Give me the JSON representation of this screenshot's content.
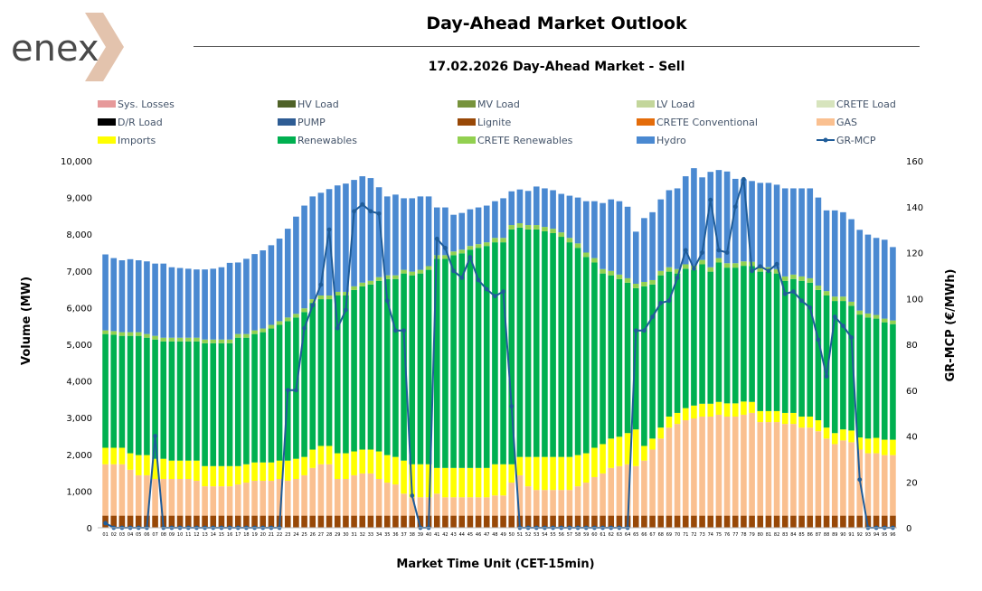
{
  "header": {
    "logo_text": "enex",
    "title": "Day-Ahead Market Outlook",
    "subtitle": "17.02.2026  Day-Ahead Market - Sell"
  },
  "chart_data": {
    "type": "bar",
    "stacked": true,
    "x_count": 96,
    "xlabel": "Market Time Unit (CET-15min)",
    "ylabel": "Volume (MW)",
    "y2label": "GR-MCP (€/MWh)",
    "ylim": [
      0,
      10000
    ],
    "y2lim": [
      0,
      160
    ],
    "y_ticks": [
      "0",
      "1,000",
      "2,000",
      "3,000",
      "4,000",
      "5,000",
      "6,000",
      "7,000",
      "8,000",
      "9,000",
      "10,000"
    ],
    "y2_ticks": [
      "0",
      "20",
      "40",
      "60",
      "80",
      "100",
      "120",
      "140",
      "160"
    ],
    "legend": [
      {
        "name": "Sys. Losses",
        "color": "#e6999a",
        "kind": "box"
      },
      {
        "name": "HV Load",
        "color": "#4f6228",
        "kind": "box"
      },
      {
        "name": "MV Load",
        "color": "#77933c",
        "kind": "box"
      },
      {
        "name": "LV Load",
        "color": "#c3d69b",
        "kind": "box"
      },
      {
        "name": "CRETE Load",
        "color": "#d7e4bd",
        "kind": "box"
      },
      {
        "name": "D/R Load",
        "color": "#000000",
        "kind": "box"
      },
      {
        "name": "PUMP",
        "color": "#2e5c94",
        "kind": "box"
      },
      {
        "name": "Lignite",
        "color": "#984807",
        "kind": "box"
      },
      {
        "name": "CRETE Conventional",
        "color": "#e46c0a",
        "kind": "box"
      },
      {
        "name": "GAS",
        "color": "#fac090",
        "kind": "box"
      },
      {
        "name": "Imports",
        "color": "#ffff00",
        "kind": "box"
      },
      {
        "name": "Renewables",
        "color": "#00b050",
        "kind": "box"
      },
      {
        "name": "CRETE Renewables",
        "color": "#92d050",
        "kind": "box"
      },
      {
        "name": "Hydro",
        "color": "#4a89d1",
        "kind": "box"
      },
      {
        "name": "GR-MCP",
        "color": "#1f5c99",
        "kind": "line"
      }
    ],
    "series": [
      {
        "name": "Lignite",
        "color": "#984807",
        "values": [
          330,
          330,
          330,
          330,
          330,
          330,
          330,
          330,
          330,
          330,
          330,
          330,
          330,
          330,
          330,
          330,
          330,
          330,
          330,
          330,
          330,
          330,
          330,
          330,
          330,
          330,
          330,
          330,
          330,
          330,
          330,
          330,
          330,
          330,
          330,
          330,
          330,
          330,
          330,
          330,
          330,
          330,
          330,
          330,
          330,
          330,
          330,
          330,
          330,
          330,
          330,
          330,
          330,
          330,
          330,
          330,
          330,
          330,
          330,
          330,
          330,
          330,
          330,
          330,
          330,
          330,
          330,
          330,
          330,
          330,
          330,
          330,
          330,
          330,
          330,
          330,
          330,
          330,
          330,
          330,
          330,
          330,
          330,
          330,
          330,
          330,
          330,
          330,
          330,
          330,
          330,
          330,
          330,
          330,
          330,
          330
        ]
      },
      {
        "name": "GAS",
        "color": "#fac090",
        "values": [
          1400,
          1400,
          1400,
          1250,
          1100,
          1100,
          1000,
          1000,
          1000,
          1000,
          1000,
          950,
          800,
          800,
          800,
          800,
          850,
          900,
          950,
          950,
          950,
          1000,
          950,
          1000,
          1100,
          1300,
          1400,
          1400,
          1000,
          1000,
          1100,
          1150,
          1150,
          1000,
          900,
          850,
          600,
          500,
          500,
          500,
          600,
          500,
          500,
          500,
          500,
          500,
          500,
          550,
          550,
          900,
          1100,
          800,
          700,
          700,
          700,
          700,
          700,
          800,
          900,
          1050,
          1150,
          1300,
          1350,
          1400,
          1350,
          1500,
          1800,
          2100,
          2400,
          2500,
          2600,
          2650,
          2700,
          2700,
          2750,
          2700,
          2700,
          2750,
          2800,
          2550,
          2550,
          2550,
          2500,
          2500,
          2400,
          2400,
          2300,
          2100,
          1950,
          2050,
          2000,
          1800,
          1700,
          1700,
          1650,
          1650
        ]
      },
      {
        "name": "Imports",
        "color": "#ffff00",
        "values": [
          450,
          450,
          450,
          450,
          550,
          550,
          550,
          550,
          500,
          500,
          500,
          550,
          550,
          550,
          550,
          550,
          500,
          500,
          500,
          500,
          500,
          500,
          550,
          550,
          500,
          500,
          500,
          500,
          700,
          700,
          650,
          650,
          650,
          750,
          750,
          750,
          900,
          900,
          900,
          900,
          700,
          800,
          800,
          800,
          800,
          800,
          800,
          850,
          850,
          500,
          500,
          800,
          900,
          900,
          900,
          900,
          900,
          850,
          800,
          800,
          800,
          800,
          800,
          850,
          1000,
          400,
          300,
          300,
          300,
          300,
          330,
          350,
          350,
          350,
          350,
          360,
          360,
          360,
          300,
          300,
          300,
          300,
          300,
          300,
          300,
          300,
          300,
          300,
          300,
          300,
          320,
          330,
          400,
          420,
          420,
          420
        ]
      },
      {
        "name": "Renewables",
        "color": "#00b050",
        "values": [
          3100,
          3080,
          3050,
          3200,
          3250,
          3200,
          3250,
          3200,
          3250,
          3250,
          3250,
          3250,
          3350,
          3350,
          3350,
          3350,
          3500,
          3450,
          3500,
          3550,
          3650,
          3700,
          3800,
          3850,
          3950,
          4000,
          4000,
          4000,
          4300,
          4300,
          4400,
          4450,
          4500,
          4650,
          4800,
          4850,
          5100,
          5150,
          5200,
          5300,
          5700,
          5700,
          5800,
          5850,
          5950,
          6000,
          6050,
          6050,
          6050,
          6400,
          6250,
          6200,
          6200,
          6150,
          6100,
          6000,
          5850,
          5650,
          5350,
          5050,
          4650,
          4450,
          4300,
          4100,
          3850,
          4350,
          4200,
          4150,
          3950,
          3800,
          3800,
          3700,
          3800,
          3600,
          3800,
          3700,
          3700,
          3700,
          3700,
          3800,
          3800,
          3750,
          3600,
          3650,
          3700,
          3650,
          3550,
          3600,
          3600,
          3500,
          3400,
          3350,
          3300,
          3250,
          3200,
          3150
        ]
      },
      {
        "name": "CRETE Renewables",
        "color": "#92d050",
        "values": [
          100,
          100,
          100,
          100,
          100,
          100,
          100,
          100,
          100,
          100,
          100,
          100,
          100,
          100,
          100,
          100,
          100,
          100,
          100,
          100,
          100,
          100,
          100,
          100,
          100,
          100,
          100,
          100,
          100,
          100,
          100,
          100,
          100,
          100,
          100,
          100,
          100,
          100,
          100,
          100,
          100,
          100,
          100,
          100,
          100,
          100,
          100,
          120,
          120,
          120,
          120,
          120,
          120,
          120,
          120,
          120,
          120,
          120,
          120,
          120,
          120,
          120,
          120,
          120,
          120,
          120,
          120,
          120,
          120,
          120,
          120,
          120,
          120,
          120,
          120,
          120,
          120,
          120,
          120,
          120,
          120,
          120,
          120,
          120,
          120,
          120,
          120,
          120,
          120,
          120,
          110,
          110,
          110,
          100,
          100,
          100
        ]
      },
      {
        "name": "Hydro",
        "color": "#4a89d1",
        "values": [
          2070,
          1990,
          1960,
          1990,
          1960,
          1980,
          1970,
          2020,
          1920,
          1900,
          1880,
          1860,
          1910,
          1930,
          1970,
          2090,
          1950,
          2050,
          2080,
          2130,
          2170,
          2250,
          2420,
          2650,
          2800,
          2800,
          2800,
          2900,
          2900,
          2950,
          2900,
          2900,
          2800,
          2450,
          2150,
          2200,
          1950,
          2000,
          2000,
          1900,
          1300,
          1300,
          1000,
          1000,
          1000,
          1000,
          1000,
          1000,
          1080,
          920,
          920,
          930,
          1050,
          1050,
          1050,
          1050,
          1150,
          1250,
          1400,
          1550,
          1800,
          1950,
          2000,
          1950,
          1420,
          1740,
          1850,
          1950,
          2100,
          2200,
          2400,
          2650,
          2250,
          2600,
          2400,
          2500,
          2300,
          2240,
          2200,
          2300,
          2300,
          2300,
          2400,
          2350,
          2400,
          2450,
          2400,
          2200,
          2350,
          2300,
          2250,
          2200,
          2150,
          2100,
          2150,
          2000
        ]
      }
    ],
    "line": {
      "name": "GR-MCP",
      "color": "#1f5c99",
      "values": [
        2,
        0,
        0,
        0,
        0,
        0,
        40,
        0,
        0,
        0,
        0,
        0,
        0,
        0,
        0,
        0,
        0,
        0,
        0,
        0,
        0,
        0,
        60,
        60,
        87,
        97,
        106,
        130,
        87,
        95,
        138,
        141,
        138,
        137,
        99,
        86,
        86,
        14,
        0,
        0,
        126,
        122,
        112,
        109,
        118,
        108,
        104,
        101,
        103,
        53,
        0,
        0,
        0,
        0,
        0,
        0,
        0,
        0,
        0,
        0,
        0,
        0,
        0,
        0,
        86,
        86,
        92,
        98,
        99,
        109,
        121,
        113,
        120,
        143,
        121,
        120,
        140,
        152,
        112,
        114,
        112,
        115,
        102,
        103,
        99,
        96,
        82,
        66,
        92,
        88,
        83,
        21,
        0,
        0,
        0,
        0
      ]
    }
  }
}
